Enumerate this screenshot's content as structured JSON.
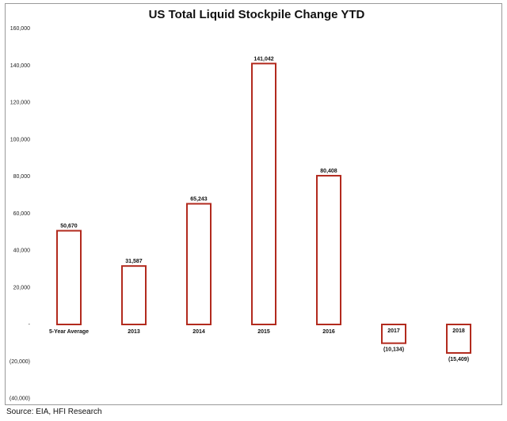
{
  "chart_data": {
    "type": "bar",
    "title": "US Total Liquid Stockpile Change YTD",
    "categories": [
      "5-Year Average",
      "2013",
      "2014",
      "2015",
      "2016",
      "2017",
      "2018"
    ],
    "values": [
      50670,
      31587,
      65243,
      141042,
      80408,
      -10134,
      -15409
    ],
    "data_labels": [
      "50,670",
      "31,587",
      "65,243",
      "141,042",
      "80,408",
      "(10,134)",
      "(15,409)"
    ],
    "y_ticks": [
      160000,
      140000,
      120000,
      100000,
      80000,
      60000,
      40000,
      20000,
      0,
      -20000,
      -40000
    ],
    "y_tick_labels": [
      "160,000",
      "140,000",
      "120,000",
      "100,000",
      "80,000",
      "60,000",
      "40,000",
      "20,000",
      "-",
      "(20,000)",
      "(40,000)"
    ],
    "ylim": [
      -40000,
      160000
    ],
    "grid": false,
    "legend": "none",
    "bar_fill": "#ffffff",
    "bar_stroke": "#b22a1e"
  },
  "source": "Source: EIA, HFI Research"
}
